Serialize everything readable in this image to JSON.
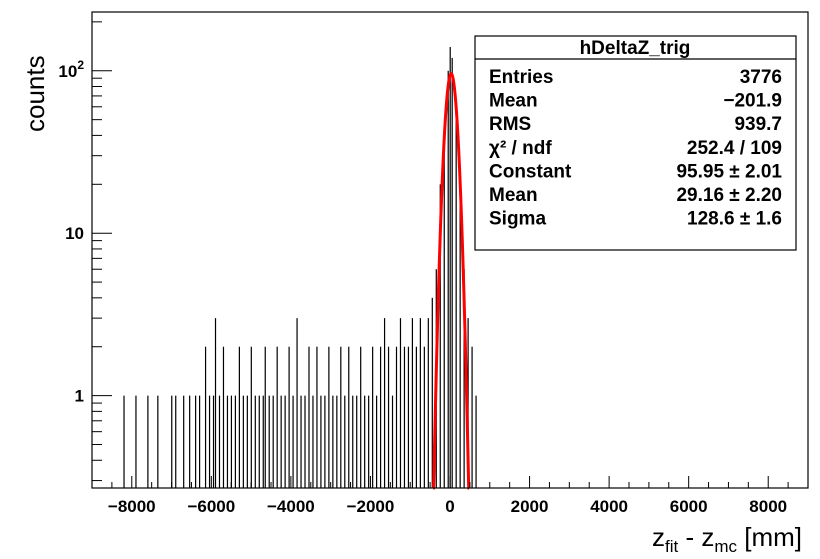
{
  "chart_data": {
    "type": "bar",
    "histogram_name": "hDeltaZ_trig",
    "xlabel": {
      "base": "z",
      "sub1": "fit",
      "mid": " - z",
      "sub2": "mc",
      "unit": " [mm]"
    },
    "ylabel": "counts",
    "xlim": [
      -9000,
      9000
    ],
    "ylim": [
      0.27,
      230
    ],
    "y_scale": "log",
    "grid": false,
    "x_ticks": [
      -8000,
      -6000,
      -4000,
      -2000,
      0,
      2000,
      4000,
      6000,
      8000
    ],
    "x_tick_labels": [
      "−8000",
      "−6000",
      "−4000",
      "−2000",
      "0",
      "2000",
      "4000",
      "6000",
      "8000"
    ],
    "y_tick_labels": [
      {
        "value": 1,
        "base": "1",
        "exp": ""
      },
      {
        "value": 10,
        "base": "10",
        "exp": ""
      },
      {
        "value": 100,
        "base": "10",
        "exp": "2"
      }
    ],
    "histogram": {
      "color": "#000000",
      "bin_width": 20,
      "bins": [
        {
          "x": -8200,
          "y": 1
        },
        {
          "x": -7900,
          "y": 1
        },
        {
          "x": -7600,
          "y": 1
        },
        {
          "x": -7350,
          "y": 1
        },
        {
          "x": -7000,
          "y": 1
        },
        {
          "x": -6900,
          "y": 1
        },
        {
          "x": -6700,
          "y": 1
        },
        {
          "x": -6550,
          "y": 1
        },
        {
          "x": -6400,
          "y": 1
        },
        {
          "x": -6300,
          "y": 1
        },
        {
          "x": -6150,
          "y": 2
        },
        {
          "x": -6050,
          "y": 1
        },
        {
          "x": -5950,
          "y": 1
        },
        {
          "x": -5900,
          "y": 3
        },
        {
          "x": -5800,
          "y": 1
        },
        {
          "x": -5700,
          "y": 2
        },
        {
          "x": -5600,
          "y": 1
        },
        {
          "x": -5500,
          "y": 1
        },
        {
          "x": -5400,
          "y": 1
        },
        {
          "x": -5300,
          "y": 2
        },
        {
          "x": -5200,
          "y": 1
        },
        {
          "x": -5100,
          "y": 1
        },
        {
          "x": -5000,
          "y": 2
        },
        {
          "x": -4900,
          "y": 1
        },
        {
          "x": -4800,
          "y": 1
        },
        {
          "x": -4700,
          "y": 1
        },
        {
          "x": -4650,
          "y": 2
        },
        {
          "x": -4550,
          "y": 1
        },
        {
          "x": -4450,
          "y": 1
        },
        {
          "x": -4350,
          "y": 2
        },
        {
          "x": -4250,
          "y": 1
        },
        {
          "x": -4150,
          "y": 1
        },
        {
          "x": -4050,
          "y": 2
        },
        {
          "x": -3950,
          "y": 1
        },
        {
          "x": -3850,
          "y": 3
        },
        {
          "x": -3750,
          "y": 1
        },
        {
          "x": -3650,
          "y": 1
        },
        {
          "x": -3550,
          "y": 2
        },
        {
          "x": -3450,
          "y": 1
        },
        {
          "x": -3350,
          "y": 2
        },
        {
          "x": -3250,
          "y": 1
        },
        {
          "x": -3150,
          "y": 1
        },
        {
          "x": -3050,
          "y": 2
        },
        {
          "x": -2950,
          "y": 1
        },
        {
          "x": -2850,
          "y": 1
        },
        {
          "x": -2750,
          "y": 2
        },
        {
          "x": -2650,
          "y": 1
        },
        {
          "x": -2550,
          "y": 2
        },
        {
          "x": -2450,
          "y": 1
        },
        {
          "x": -2350,
          "y": 1
        },
        {
          "x": -2250,
          "y": 2
        },
        {
          "x": -2150,
          "y": 1
        },
        {
          "x": -2050,
          "y": 1
        },
        {
          "x": -1950,
          "y": 2
        },
        {
          "x": -1850,
          "y": 1
        },
        {
          "x": -1750,
          "y": 2
        },
        {
          "x": -1650,
          "y": 3
        },
        {
          "x": -1550,
          "y": 2
        },
        {
          "x": -1450,
          "y": 1
        },
        {
          "x": -1350,
          "y": 2
        },
        {
          "x": -1250,
          "y": 3
        },
        {
          "x": -1150,
          "y": 2
        },
        {
          "x": -1050,
          "y": 2
        },
        {
          "x": -950,
          "y": 3
        },
        {
          "x": -850,
          "y": 2
        },
        {
          "x": -750,
          "y": 3
        },
        {
          "x": -650,
          "y": 2
        },
        {
          "x": -550,
          "y": 3
        },
        {
          "x": -450,
          "y": 4
        },
        {
          "x": -350,
          "y": 6
        },
        {
          "x": -250,
          "y": 20
        },
        {
          "x": -150,
          "y": 45
        },
        {
          "x": -50,
          "y": 100
        },
        {
          "x": 0,
          "y": 140
        },
        {
          "x": 50,
          "y": 120
        },
        {
          "x": 150,
          "y": 60
        },
        {
          "x": 250,
          "y": 20
        },
        {
          "x": 350,
          "y": 6
        },
        {
          "x": 450,
          "y": 3
        },
        {
          "x": 550,
          "y": 2
        },
        {
          "x": 650,
          "y": 1
        }
      ]
    },
    "fit": {
      "type": "gaus",
      "color": "#ff0000",
      "constant": 95.95,
      "mean": 29.16,
      "sigma": 128.6,
      "x_range": [
        -420,
        480
      ]
    },
    "stats_box": {
      "title": "hDeltaZ_trig",
      "placement": "top-right",
      "rows": [
        {
          "label": "Entries",
          "value": "3776"
        },
        {
          "label": "Mean",
          "value": "−201.9"
        },
        {
          "label": "RMS",
          "value": "939.7"
        },
        {
          "label": "χ² / ndf",
          "value": "252.4 / 109"
        },
        {
          "label": "Constant",
          "value": "95.95 ± 2.01"
        },
        {
          "label": "Mean",
          "value": "29.16 ± 2.20"
        },
        {
          "label": "Sigma",
          "value": "128.6 ± 1.6"
        }
      ]
    }
  }
}
